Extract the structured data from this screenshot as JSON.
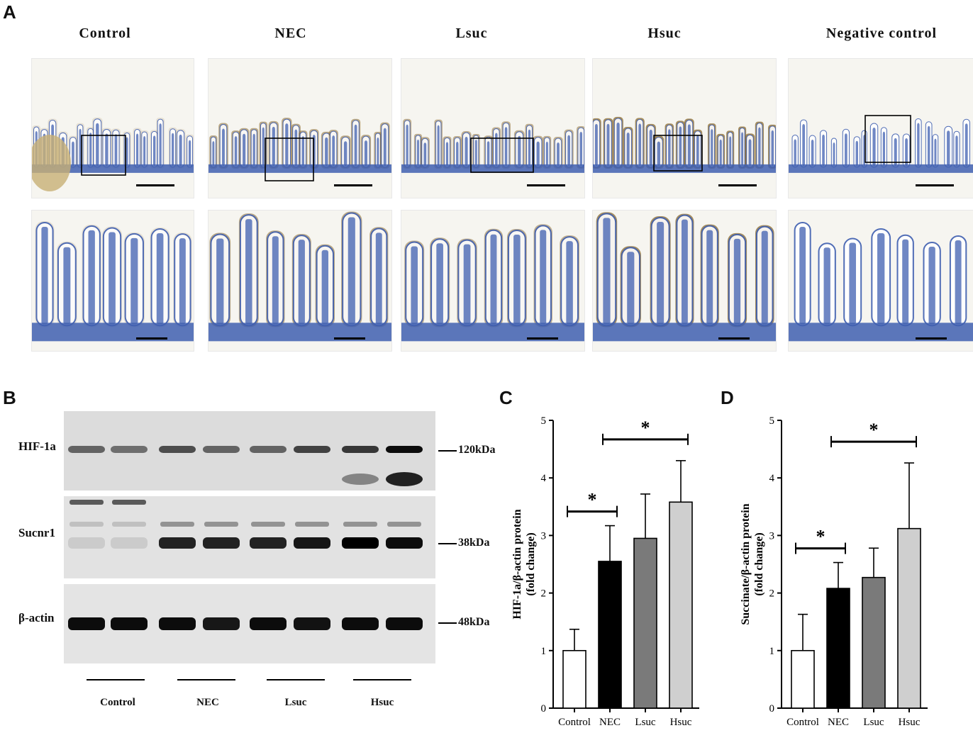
{
  "panel_labels": {
    "a": "A",
    "b": "B",
    "c": "C",
    "d": "D"
  },
  "histology": {
    "columns": [
      "Control",
      "NEC",
      "Lsuc",
      "Hsuc",
      "Negative control"
    ],
    "stain_colors": {
      "hematoxylin": "#3f5fb0",
      "dab": "#8a6a2e",
      "background": "#f6f5f0"
    }
  },
  "western": {
    "rows": [
      {
        "label": "HIF-1a",
        "kda": "120kDa"
      },
      {
        "label": "Sucnr1",
        "kda": "38kDa"
      },
      {
        "label": "β-actin",
        "kda": "48kDa"
      }
    ],
    "lanes": [
      "Control",
      "NEC",
      "Lsuc",
      "Hsuc"
    ]
  },
  "chart_data": [
    {
      "type": "bar",
      "panel": "C",
      "ylabel": "HIF-1a/β-actin protein\n(fold change)",
      "ylabel_line1": "HIF-1a/β-actin protein",
      "ylabel_line2": "(fold change)",
      "categories": [
        "Control",
        "NEC",
        "Lsuc",
        "Hsuc"
      ],
      "values": [
        1.0,
        2.55,
        2.95,
        3.58
      ],
      "errors": [
        0.37,
        0.62,
        0.77,
        0.72
      ],
      "colors": [
        "#ffffff",
        "#000000",
        "#7a7a7a",
        "#cfcfcf"
      ],
      "ylim": [
        0,
        5
      ],
      "yticks": [
        "0",
        "1",
        "2",
        "3",
        "4",
        "5"
      ],
      "significance": [
        {
          "from": "Control",
          "to": "NEC",
          "label": "*"
        },
        {
          "from": "NEC",
          "to": "Hsuc",
          "label": "*"
        }
      ]
    },
    {
      "type": "bar",
      "panel": "D",
      "ylabel": "Succinate/β-actin protein\n(fold change)",
      "ylabel_line1": "Succinate/β-actin protein",
      "ylabel_line2": "(fold change)",
      "categories": [
        "Control",
        "NEC",
        "Lsuc",
        "Hsuc"
      ],
      "values": [
        1.0,
        2.08,
        2.27,
        3.12
      ],
      "errors": [
        0.63,
        0.45,
        0.51,
        1.14
      ],
      "colors": [
        "#ffffff",
        "#000000",
        "#7a7a7a",
        "#cfcfcf"
      ],
      "ylim": [
        0,
        5
      ],
      "yticks": [
        "0",
        "1",
        "2",
        "3",
        "4",
        "5"
      ],
      "significance": [
        {
          "from": "Control",
          "to": "NEC",
          "label": "*"
        },
        {
          "from": "NEC",
          "to": "Hsuc",
          "label": "*"
        }
      ]
    }
  ]
}
